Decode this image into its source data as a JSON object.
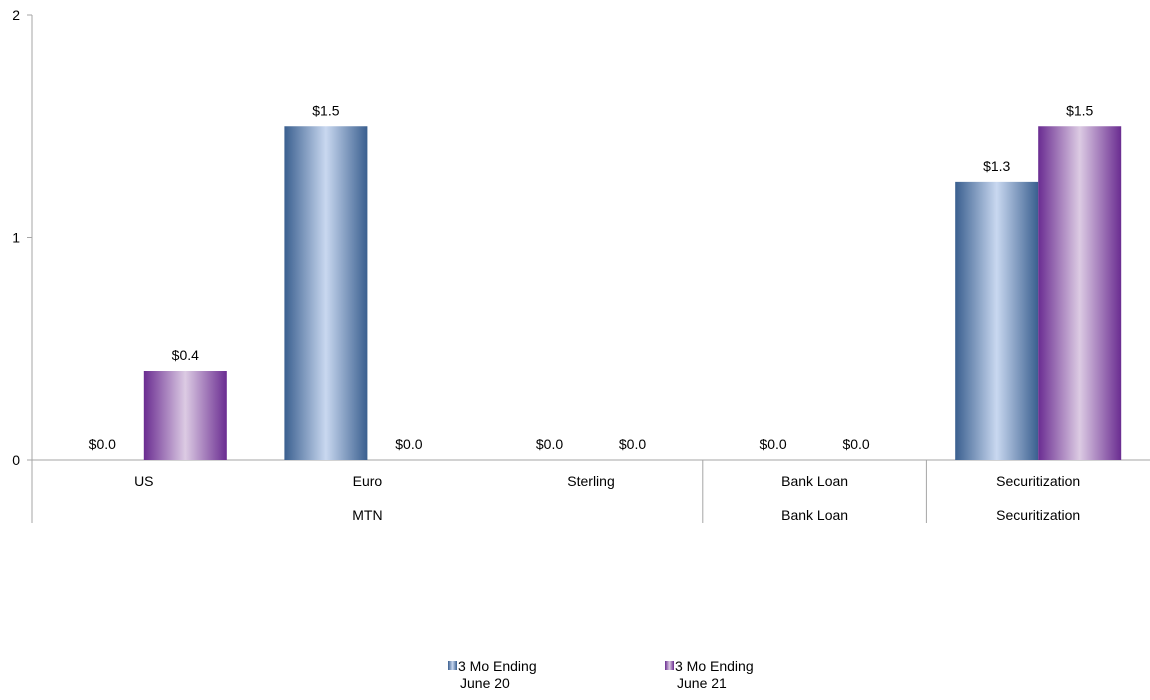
{
  "chart_data": {
    "type": "bar",
    "title": "",
    "xlabel": "",
    "ylabel": "",
    "ylim": [
      0,
      2
    ],
    "yticks": [
      0,
      1,
      2
    ],
    "grid": false,
    "legend_position": "bottom-center",
    "categories": [
      "US",
      "Euro",
      "Sterling",
      "Bank Loan",
      "Securitization"
    ],
    "groups": [
      {
        "label": "MTN",
        "categories": [
          "US",
          "Euro",
          "Sterling"
        ]
      },
      {
        "label": "Bank Loan",
        "categories": [
          "Bank Loan"
        ]
      },
      {
        "label": "Securitization",
        "categories": [
          "Securitization"
        ]
      }
    ],
    "series": [
      {
        "name": "3 Mo Ending June 20",
        "name_lines": [
          "3 Mo Ending",
          "June 20"
        ],
        "values": [
          0.0,
          1.5,
          0.0,
          0.0,
          1.25
        ],
        "labels": [
          "$0.0",
          "$1.5",
          "$0.0",
          "$0.0",
          "$1.3"
        ],
        "color_dark": "#3a5f8f",
        "color_light": "#c9d8f0"
      },
      {
        "name": "3 Mo Ending June 21",
        "name_lines": [
          "3 Mo Ending",
          "June 21"
        ],
        "values": [
          0.4,
          0.0,
          0.0,
          0.0,
          1.5
        ],
        "labels": [
          "$0.4",
          "$0.0",
          "$0.0",
          "$0.0",
          "$1.5"
        ],
        "color_dark": "#6a2c91",
        "color_light": "#dccbe3"
      }
    ]
  }
}
